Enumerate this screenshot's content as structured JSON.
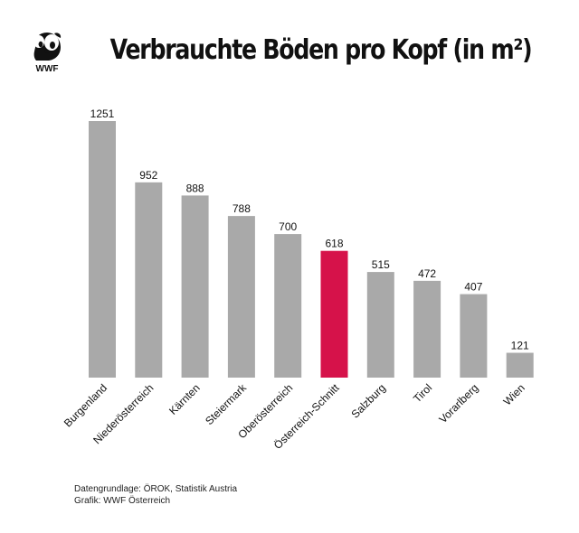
{
  "logo_text": "WWF",
  "colors": {
    "bar": "#a9a9a9",
    "highlight": "#d6124a",
    "text": "#111111"
  },
  "chart_data": {
    "type": "bar",
    "title": "Verbrauchte Böden pro Kopf (in m²)",
    "categories": [
      "Burgenland",
      "Niederösterreich",
      "Kärnten",
      "Steiermark",
      "Oberösterreich",
      "Österreich-Schnitt",
      "Salzburg",
      "Tirol",
      "Vorarlberg",
      "Wien"
    ],
    "values": [
      1251,
      952,
      888,
      788,
      700,
      618,
      515,
      472,
      407,
      121
    ],
    "highlight_category": "Österreich-Schnitt",
    "ylim": [
      0,
      1251
    ],
    "grid": false,
    "xlabel": "",
    "ylabel": ""
  },
  "source": {
    "line1": "Datengrundlage: ÖROK, Statistik Austria",
    "line2": "Grafik: WWF Österreich"
  }
}
